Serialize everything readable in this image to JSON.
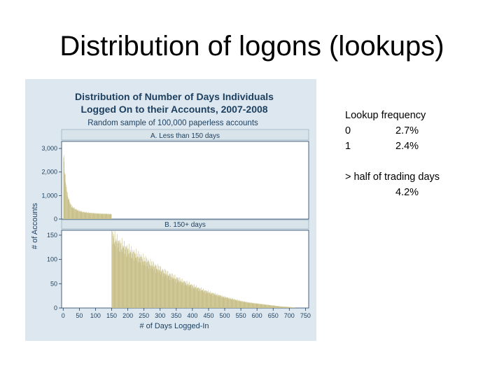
{
  "slide": {
    "title": "Distribution of logons (lookups)"
  },
  "notes": {
    "heading": "Lookup frequency",
    "rows": [
      {
        "key": "0",
        "value": "2.7%"
      },
      {
        "key": "1",
        "value": "2.4%"
      }
    ],
    "extra_label": "> half of trading days",
    "extra_value": "4.2%"
  },
  "chart_data": {
    "type": "bar",
    "title": "Distribution of Number of Days Individuals",
    "title_line2": "Logged On to their Accounts, 2007-2008",
    "subtitle": "Random sample of 100,000 paperless accounts",
    "xlabel": "# of Days Logged-In",
    "ylabel": "# of Accounts",
    "x_ticks": [
      0,
      50,
      100,
      150,
      200,
      250,
      300,
      350,
      400,
      450,
      500,
      550,
      600,
      650,
      700,
      750
    ],
    "xlim": [
      -5,
      760
    ],
    "colors": {
      "bar": "#c9c08a",
      "background": "#dde7ef",
      "panel": "#ffffff",
      "strip": "#d8e3ea"
    },
    "panels": [
      {
        "label": "A. Less than 150 days",
        "y_ticks": [
          0,
          1000,
          2000,
          3000
        ],
        "y_tick_labels": [
          "0",
          "1,000",
          "2,000",
          "3,000"
        ],
        "ylim": [
          0,
          3300
        ],
        "x": [
          1,
          3,
          5,
          7,
          10,
          15,
          20,
          25,
          30,
          40,
          50,
          60,
          75,
          90,
          110,
          130,
          149
        ],
        "values": [
          2700,
          2400,
          1950,
          1600,
          1250,
          900,
          700,
          560,
          480,
          400,
          340,
          300,
          270,
          250,
          230,
          220,
          210
        ]
      },
      {
        "label": "B. 150+ days",
        "y_ticks": [
          0,
          50,
          100,
          150
        ],
        "y_tick_labels": [
          "0",
          "50",
          "100",
          "150"
        ],
        "ylim": [
          0,
          160
        ],
        "x": [
          150,
          160,
          175,
          200,
          225,
          250,
          275,
          300,
          325,
          350,
          375,
          400,
          425,
          450,
          475,
          500,
          525,
          550,
          575,
          600,
          625,
          650,
          675,
          700,
          715
        ],
        "values": [
          150,
          140,
          130,
          118,
          108,
          98,
          88,
          78,
          68,
          60,
          52,
          45,
          38,
          32,
          27,
          22,
          18,
          14,
          11,
          9,
          7,
          5,
          3,
          2,
          1
        ]
      }
    ]
  }
}
